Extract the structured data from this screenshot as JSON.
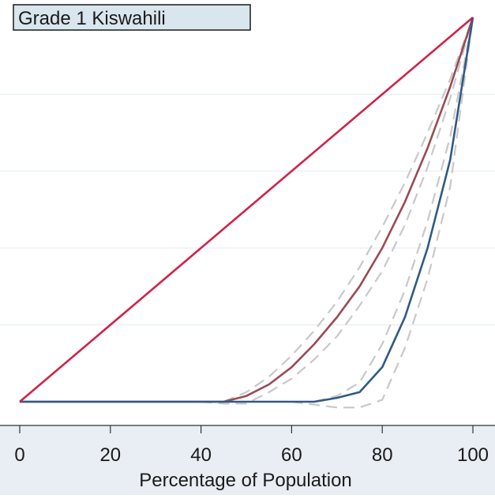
{
  "chart_data": {
    "type": "line",
    "title": "Grade 1 Kiswahili",
    "xlabel": "Percentage of Population",
    "ylabel": "",
    "xlim": [
      0,
      100
    ],
    "ylim": [
      0,
      100
    ],
    "xticks": [
      "0",
      "20",
      "40",
      "60",
      "80",
      "100"
    ],
    "grid": true,
    "legend": "none",
    "colors": {
      "plot_background": "#ffffff",
      "axis_band": "#e8eef3",
      "gridline": "#eaf1f6",
      "title_box": "#d9e6ee",
      "equality_line": "#d0224a",
      "series_red": "#9b4a56",
      "series_blue": "#2f5a87",
      "confidence_band": "#c8c8c8"
    },
    "series": [
      {
        "style": "solid",
        "color": "#d0224a",
        "x": [
          0,
          100
        ],
        "y": [
          0,
          100
        ]
      },
      {
        "style": "solid",
        "color": "#9b4a56",
        "x": [
          0,
          40,
          45,
          50,
          55,
          60,
          65,
          70,
          75,
          80,
          85,
          90,
          95,
          100
        ],
        "y": [
          0,
          0,
          0,
          1.5,
          4.5,
          9,
          15,
          22,
          30,
          40,
          52,
          66,
          82,
          100
        ]
      },
      {
        "style": "solid",
        "color": "#2f5a87",
        "x": [
          0,
          65,
          70,
          75,
          80,
          85,
          90,
          95,
          100
        ],
        "y": [
          0,
          0,
          1,
          2.5,
          9,
          22,
          40,
          63,
          100
        ]
      },
      {
        "style": "dashed",
        "color": "#c8c8c8",
        "x": [
          45,
          50,
          55,
          60,
          65,
          70,
          75,
          80,
          85,
          90,
          95,
          100
        ],
        "y": [
          0,
          2.5,
          6.5,
          12,
          18.5,
          26,
          35,
          45.5,
          57,
          70,
          84,
          100
        ]
      },
      {
        "style": "dashed",
        "color": "#c8c8c8",
        "x": [
          40,
          45,
          50,
          55,
          60,
          65,
          70,
          75,
          80,
          85,
          90,
          95,
          100
        ],
        "y": [
          0,
          -0.5,
          -0.5,
          2.5,
          6,
          11,
          17,
          25,
          34,
          46,
          61,
          79,
          100
        ]
      },
      {
        "style": "dashed",
        "color": "#c8c8c8",
        "x": [
          65,
          70,
          75,
          80,
          85,
          90,
          95,
          100
        ],
        "y": [
          0,
          1.5,
          5,
          15,
          29,
          47,
          69,
          100
        ]
      },
      {
        "style": "dashed",
        "color": "#c8c8c8",
        "x": [
          60,
          70,
          75,
          80,
          85,
          90,
          95,
          100
        ],
        "y": [
          0,
          -1.5,
          -1.5,
          0.5,
          14,
          32,
          56,
          100
        ]
      }
    ]
  }
}
